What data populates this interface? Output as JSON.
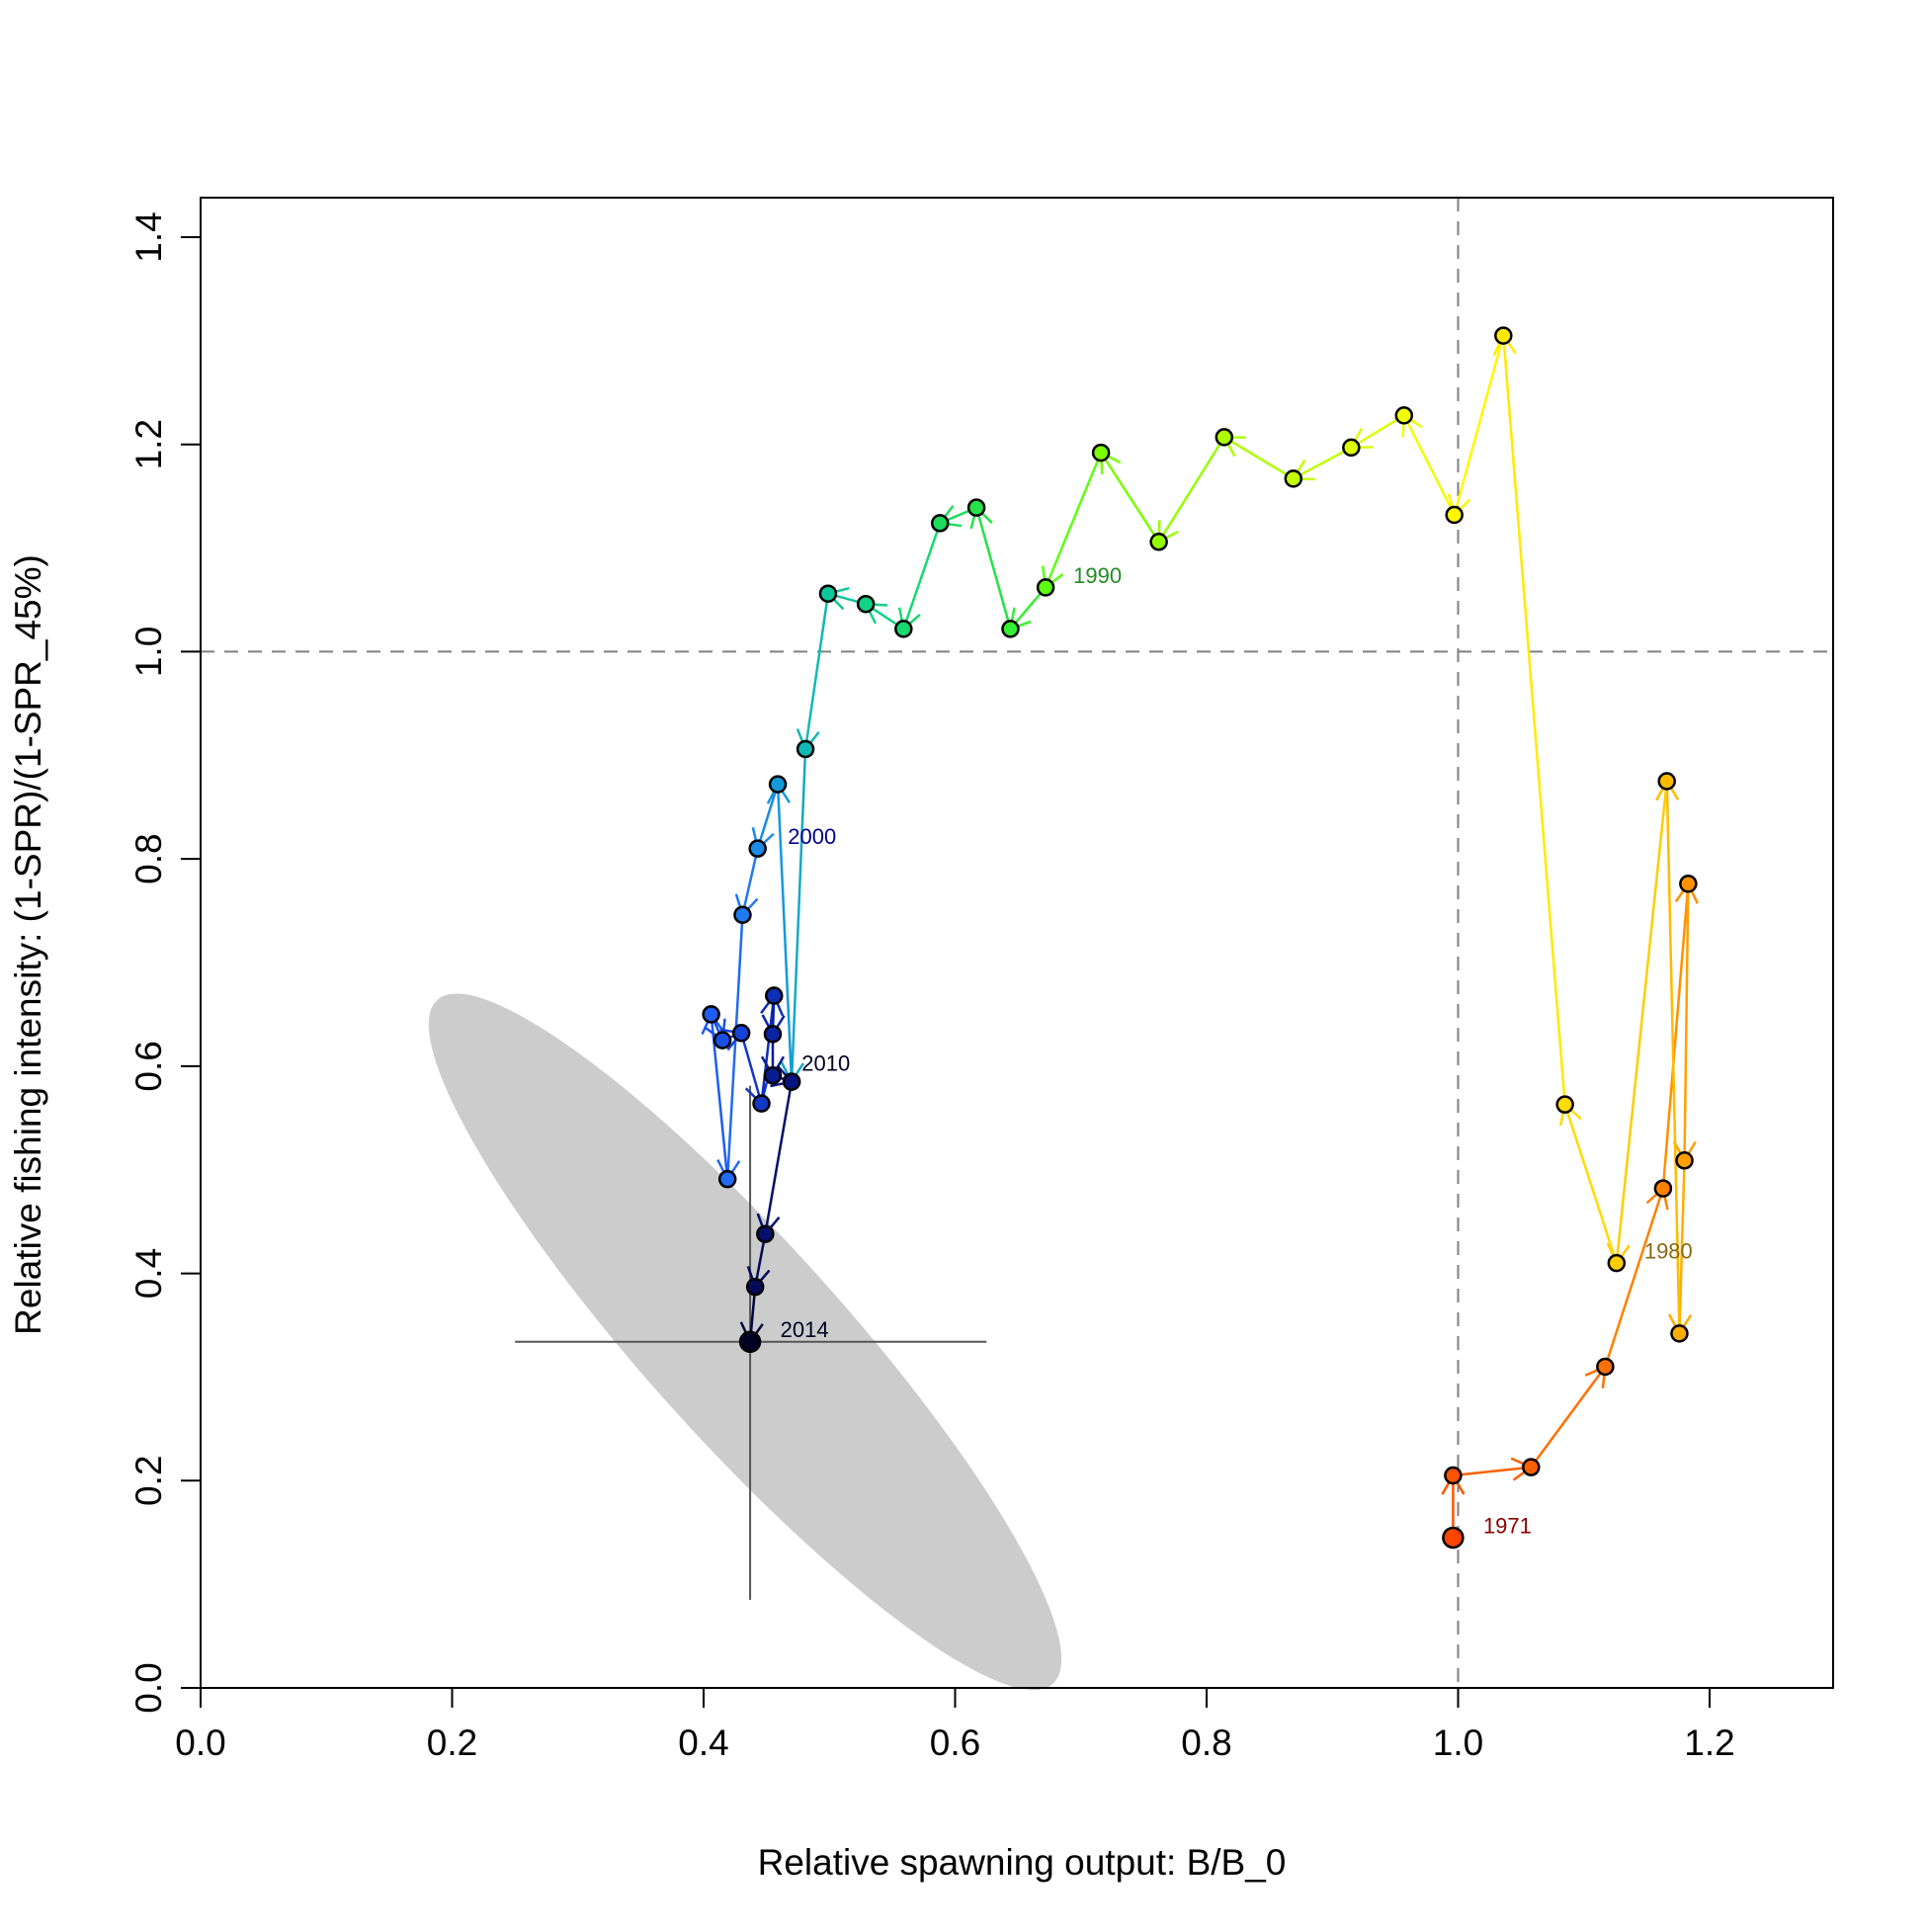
{
  "chart_data": {
    "type": "scatter",
    "title": "",
    "xlabel": "Relative spawning output: B/B_0",
    "ylabel": "Relative fishing intensity: (1-SPR)/(1-SPR_45%)",
    "xlim": [
      0,
      1.3
    ],
    "ylim": [
      0,
      1.4
    ],
    "x_ticks": [
      {
        "value": 0.0,
        "label": "0.0"
      },
      {
        "value": 0.2,
        "label": "0.2"
      },
      {
        "value": 0.4,
        "label": "0.4"
      },
      {
        "value": 0.6,
        "label": "0.6"
      },
      {
        "value": 0.8,
        "label": "0.8"
      },
      {
        "value": 1.0,
        "label": "1.0"
      },
      {
        "value": 1.2,
        "label": "1.2"
      }
    ],
    "y_ticks": [
      {
        "value": 0.0,
        "label": "0.0"
      },
      {
        "value": 0.2,
        "label": "0.2"
      },
      {
        "value": 0.4,
        "label": "0.4"
      },
      {
        "value": 0.6,
        "label": "0.6"
      },
      {
        "value": 0.8,
        "label": "0.8"
      },
      {
        "value": 1.0,
        "label": "1.0"
      },
      {
        "value": 1.2,
        "label": "1.2"
      },
      {
        "value": 1.4,
        "label": "1.4"
      }
    ],
    "grid": false,
    "legend": "none",
    "reference_lines": {
      "x": 1.0,
      "y": 1.0
    },
    "points": [
      {
        "year": 1971,
        "x": 0.996,
        "y": 0.145,
        "color": "#ff4400"
      },
      {
        "year": 1972,
        "x": 0.996,
        "y": 0.205,
        "color": "#ff5200"
      },
      {
        "year": 1973,
        "x": 1.058,
        "y": 0.213,
        "color": "#ff6000"
      },
      {
        "year": 1974,
        "x": 1.117,
        "y": 0.31,
        "color": "#ff7000"
      },
      {
        "year": 1975,
        "x": 1.163,
        "y": 0.482,
        "color": "#ff8000"
      },
      {
        "year": 1976,
        "x": 1.183,
        "y": 0.776,
        "color": "#ff9000"
      },
      {
        "year": 1977,
        "x": 1.18,
        "y": 0.509,
        "color": "#ffa000"
      },
      {
        "year": 1978,
        "x": 1.176,
        "y": 0.342,
        "color": "#ffad00"
      },
      {
        "year": 1979,
        "x": 1.166,
        "y": 0.875,
        "color": "#ffbb00"
      },
      {
        "year": 1980,
        "x": 1.126,
        "y": 0.41,
        "color": "#ffcc00"
      },
      {
        "year": 1981,
        "x": 1.085,
        "y": 0.563,
        "color": "#ffdb00"
      },
      {
        "year": 1982,
        "x": 1.036,
        "y": 1.305,
        "color": "#ffea00"
      },
      {
        "year": 1983,
        "x": 0.997,
        "y": 1.132,
        "color": "#fff700"
      },
      {
        "year": 1984,
        "x": 0.957,
        "y": 1.228,
        "color": "#f0ff00"
      },
      {
        "year": 1985,
        "x": 0.915,
        "y": 1.197,
        "color": "#daff00"
      },
      {
        "year": 1986,
        "x": 0.869,
        "y": 1.167,
        "color": "#c2ff00"
      },
      {
        "year": 1987,
        "x": 0.814,
        "y": 1.207,
        "color": "#adff00"
      },
      {
        "year": 1988,
        "x": 0.762,
        "y": 1.106,
        "color": "#95ff00"
      },
      {
        "year": 1989,
        "x": 0.716,
        "y": 1.192,
        "color": "#7aff00"
      },
      {
        "year": 1990,
        "x": 0.672,
        "y": 1.062,
        "color": "#5cff10"
      },
      {
        "year": 1991,
        "x": 0.644,
        "y": 1.022,
        "color": "#35f030"
      },
      {
        "year": 1992,
        "x": 0.617,
        "y": 1.139,
        "color": "#26e248"
      },
      {
        "year": 1993,
        "x": 0.588,
        "y": 1.124,
        "color": "#1edc5c"
      },
      {
        "year": 1994,
        "x": 0.559,
        "y": 1.022,
        "color": "#18d870"
      },
      {
        "year": 1995,
        "x": 0.529,
        "y": 1.046,
        "color": "#12d086"
      },
      {
        "year": 1996,
        "x": 0.499,
        "y": 1.056,
        "color": "#0ec69c"
      },
      {
        "year": 1997,
        "x": 0.481,
        "y": 0.906,
        "color": "#12b8b4"
      },
      {
        "year": 1998,
        "x": 0.47,
        "y": 0.585,
        "color": "#14a8c8"
      },
      {
        "year": 1999,
        "x": 0.459,
        "y": 0.872,
        "color": "#1499da"
      },
      {
        "year": 2000,
        "x": 0.443,
        "y": 0.81,
        "color": "#1c8ae6"
      },
      {
        "year": 2001,
        "x": 0.431,
        "y": 0.746,
        "color": "#2079ee"
      },
      {
        "year": 2002,
        "x": 0.419,
        "y": 0.491,
        "color": "#226af2"
      },
      {
        "year": 2003,
        "x": 0.406,
        "y": 0.65,
        "color": "#1e5cf2"
      },
      {
        "year": 2004,
        "x": 0.415,
        "y": 0.625,
        "color": "#1a4fe6"
      },
      {
        "year": 2005,
        "x": 0.43,
        "y": 0.632,
        "color": "#1642d6"
      },
      {
        "year": 2006,
        "x": 0.446,
        "y": 0.564,
        "color": "#1238c6"
      },
      {
        "year": 2007,
        "x": 0.456,
        "y": 0.668,
        "color": "#0e2eb4"
      },
      {
        "year": 2008,
        "x": 0.455,
        "y": 0.631,
        "color": "#0a25a2"
      },
      {
        "year": 2009,
        "x": 0.455,
        "y": 0.591,
        "color": "#081d90"
      },
      {
        "year": 2010,
        "x": 0.47,
        "y": 0.585,
        "color": "#06157e"
      },
      {
        "year": 2011,
        "x": 0.449,
        "y": 0.438,
        "color": "#050f6c"
      },
      {
        "year": 2012,
        "x": 0.441,
        "y": 0.387,
        "color": "#040a58"
      },
      {
        "year": 2013,
        "x": 0.437,
        "y": 0.334,
        "color": "#020640"
      },
      {
        "year": 2014,
        "x": 0.437,
        "y": 0.334,
        "color": "#000022"
      }
    ],
    "year_labels": [
      {
        "text": "1971",
        "x": 1.02,
        "y": 0.157,
        "color": "#8b0000"
      },
      {
        "text": "1980",
        "x": 1.148,
        "y": 0.422,
        "color": "#8b6914"
      },
      {
        "text": "1990",
        "x": 0.694,
        "y": 1.074,
        "color": "#228b22"
      },
      {
        "text": "2000",
        "x": 0.467,
        "y": 0.822,
        "color": "#00008b"
      },
      {
        "text": "2010",
        "x": 0.478,
        "y": 0.603,
        "color": "#000022"
      },
      {
        "text": "2014",
        "x": 0.461,
        "y": 0.346,
        "color": "#000022"
      }
    ],
    "uncertainty": {
      "center": {
        "x": 0.437,
        "y": 0.334
      },
      "x_range": [
        0.25,
        0.625
      ],
      "y_range": [
        0.085,
        0.581
      ],
      "ellipse_rx": 0.31,
      "ellipse_ry": 0.1,
      "ellipse_angle_deg": -48,
      "ellipse_center": {
        "x": 0.433,
        "y": 0.334
      }
    },
    "colors": {
      "axis": "#000000",
      "reference_line": "#808080",
      "ellipse_fill": "#cccccc",
      "crosshair": "#555555",
      "point_outline": "#000000"
    }
  }
}
